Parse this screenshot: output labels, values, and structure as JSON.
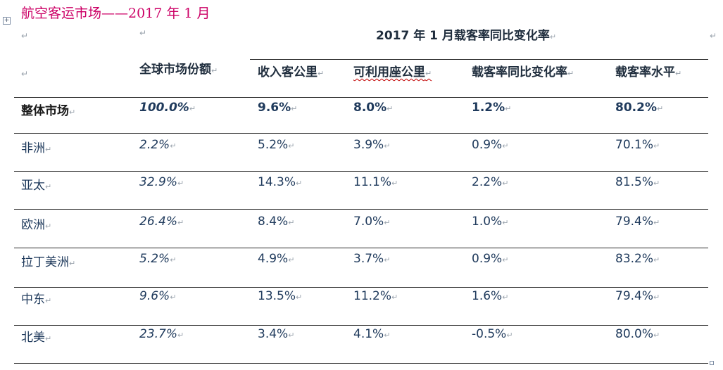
{
  "title": "航空客运市场——2017 年 1 月",
  "super_header": "2017 年 1 月载客率同比变化率",
  "columns": {
    "market_share": "全球市场份额",
    "rpk": "收入客公里",
    "ask": "可利用座公里",
    "plf_change": "载客率同比变化率",
    "plf_level": "载客率水平"
  },
  "rows": [
    {
      "region": "整体市场",
      "share": "100.0%",
      "rpk": "9.6%",
      "ask": "8.0%",
      "plf_change": "1.2%",
      "plf_level": "80.2%"
    },
    {
      "region": "非洲",
      "share": "2.2%",
      "rpk": "5.2%",
      "ask": "3.9%",
      "plf_change": "0.9%",
      "plf_level": "70.1%"
    },
    {
      "region": "亚太",
      "share": "32.9%",
      "rpk": "14.3%",
      "ask": "11.1%",
      "plf_change": "2.2%",
      "plf_level": "81.5%"
    },
    {
      "region": "欧洲",
      "share": "26.4%",
      "rpk": "8.4%",
      "ask": "7.0%",
      "plf_change": "1.0%",
      "plf_level": "79.4%"
    },
    {
      "region": "拉丁美洲",
      "share": "5.2%",
      "rpk": "4.9%",
      "ask": "3.7%",
      "plf_change": "0.9%",
      "plf_level": "83.2%"
    },
    {
      "region": "中东",
      "share": "9.6%",
      "rpk": "13.5%",
      "ask": "11.2%",
      "plf_change": "1.6%",
      "plf_level": "79.4%"
    },
    {
      "region": "北美",
      "share": "23.7%",
      "rpk": "3.4%",
      "ask": "4.1%",
      "plf_change": "-0.5%",
      "plf_level": "80.0%"
    }
  ],
  "colors": {
    "title": "#cc0066",
    "text": "#1f3a5c",
    "rule": "#2a2a2a"
  },
  "icons": {
    "table_anchor": "table-move-handle-icon"
  }
}
